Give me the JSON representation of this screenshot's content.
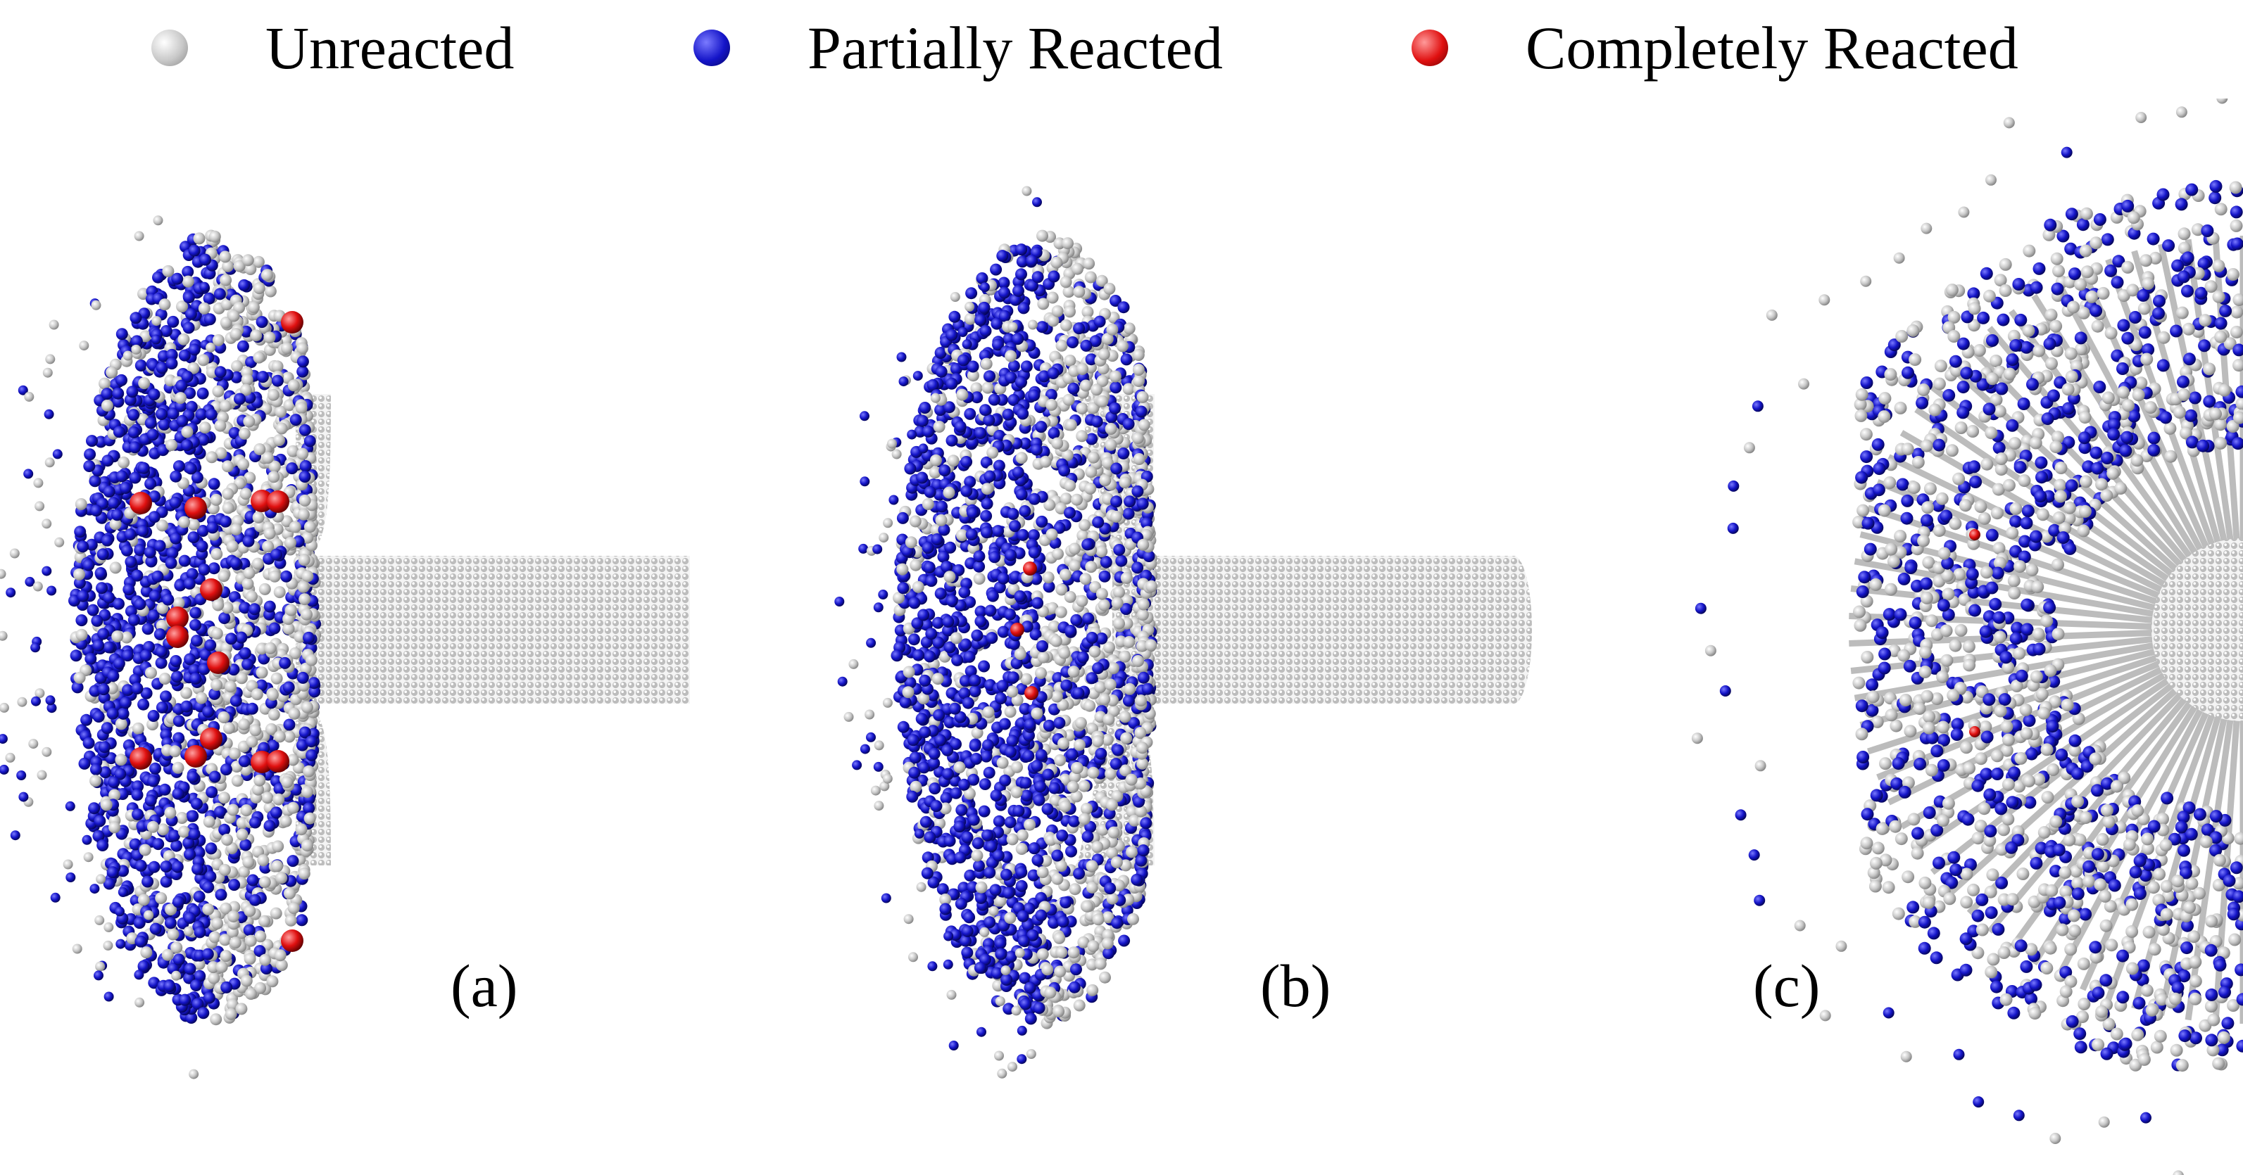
{
  "legend": {
    "items": [
      {
        "label": "Unreacted",
        "color": "#c8c8c8"
      },
      {
        "label": "Partially Reacted",
        "color": "#1414c8"
      },
      {
        "label": "Completely Reacted",
        "color": "#e01010"
      }
    ]
  },
  "panels": [
    {
      "label": "(a)"
    },
    {
      "label": "(b)"
    },
    {
      "label": "(c)"
    }
  ]
}
